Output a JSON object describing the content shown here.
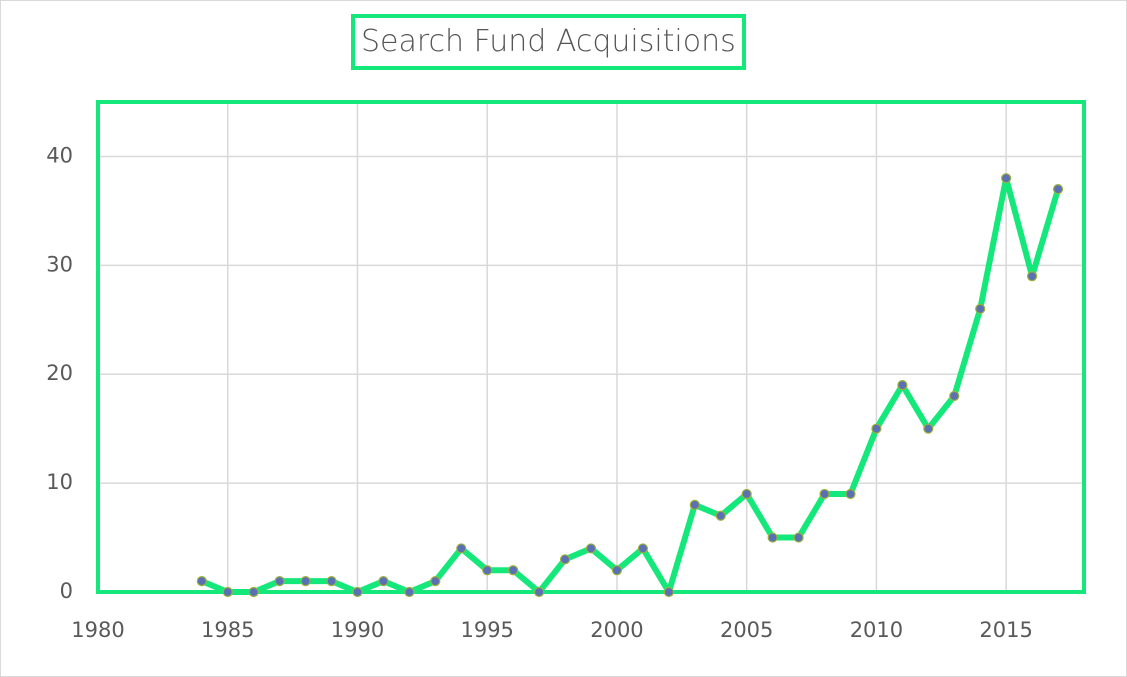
{
  "chart_data": {
    "type": "line",
    "title": "Search Fund Acquisitions",
    "x": [
      1984,
      1985,
      1986,
      1987,
      1988,
      1989,
      1990,
      1991,
      1992,
      1993,
      1994,
      1995,
      1996,
      1997,
      1998,
      1999,
      2000,
      2001,
      2002,
      2003,
      2004,
      2005,
      2006,
      2007,
      2008,
      2009,
      2010,
      2011,
      2012,
      2013,
      2014,
      2015,
      2016,
      2017
    ],
    "series": [
      {
        "color": "#14e87a",
        "marker_color": "#5b6fb5",
        "values": [
          1,
          0,
          0,
          1,
          1,
          1,
          0,
          1,
          0,
          1,
          4,
          2,
          2,
          0,
          3,
          4,
          2,
          4,
          0,
          8,
          7,
          9,
          5,
          5,
          9,
          9,
          15,
          19,
          15,
          18,
          26,
          38,
          29,
          37
        ]
      }
    ],
    "xlim": [
      1980,
      2018
    ],
    "xticks": [
      1980,
      1985,
      1990,
      1995,
      2000,
      2005,
      2010,
      2015
    ],
    "ylim": [
      0,
      45
    ],
    "yticks": [
      0,
      10,
      20,
      30,
      40
    ],
    "grid": true
  }
}
